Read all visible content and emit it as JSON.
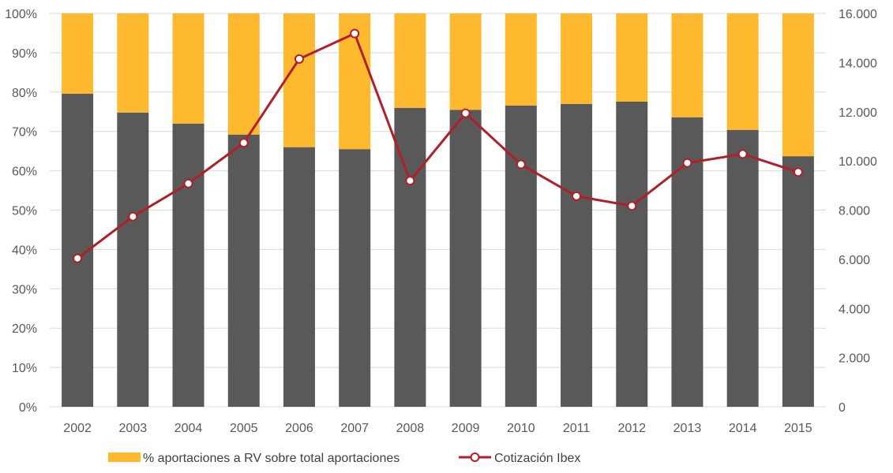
{
  "chart_data": {
    "type": "bar",
    "stacked": true,
    "categories": [
      "2002",
      "2003",
      "2004",
      "2005",
      "2006",
      "2007",
      "2008",
      "2009",
      "2010",
      "2011",
      "2012",
      "2013",
      "2014",
      "2015"
    ],
    "series": [
      {
        "name": "",
        "kind": "bar",
        "axis": "left",
        "color": "#595959",
        "values": [
          79.6,
          74.8,
          72.0,
          69.2,
          66.0,
          65.5,
          76.0,
          75.5,
          76.6,
          77.0,
          77.6,
          73.6,
          70.4,
          63.7
        ]
      },
      {
        "name": "% aportaciones a RV sobre total aportaciones",
        "kind": "bar",
        "axis": "left",
        "color": "#FFB92E",
        "values": [
          20.4,
          25.2,
          28.0,
          30.8,
          34.0,
          34.5,
          24.0,
          24.5,
          23.4,
          23.0,
          22.4,
          26.4,
          29.6,
          36.3
        ]
      },
      {
        "name": "Cotización Ibex",
        "kind": "line",
        "axis": "right",
        "color": "#B01F2A",
        "marker": "open-circle",
        "values": [
          6037,
          7737,
          9080,
          10734,
          14146,
          15182,
          9196,
          11940,
          9859,
          8566,
          8168,
          9917,
          10280,
          9544
        ]
      }
    ],
    "left_axis": {
      "ylim": [
        0,
        100
      ],
      "ticks": [
        "0%",
        "10%",
        "20%",
        "30%",
        "40%",
        "50%",
        "60%",
        "70%",
        "80%",
        "90%",
        "100%"
      ]
    },
    "right_axis": {
      "ylim": [
        0,
        16000
      ],
      "ticks": [
        "0",
        "2.000",
        "4.000",
        "6.000",
        "8.000",
        "10.000",
        "12.000",
        "14.000",
        "16.000"
      ]
    },
    "grid": "horizontal",
    "legend": {
      "position": "bottom",
      "entries": [
        {
          "label": "% aportaciones a RV sobre total aportaciones",
          "color": "#FFB92E",
          "kind": "bar"
        },
        {
          "label": "Cotización Ibex",
          "color": "#B01F2A",
          "kind": "line"
        }
      ]
    },
    "colors": {
      "grid": "#D9D9D9",
      "axis_text": "#595959"
    }
  }
}
